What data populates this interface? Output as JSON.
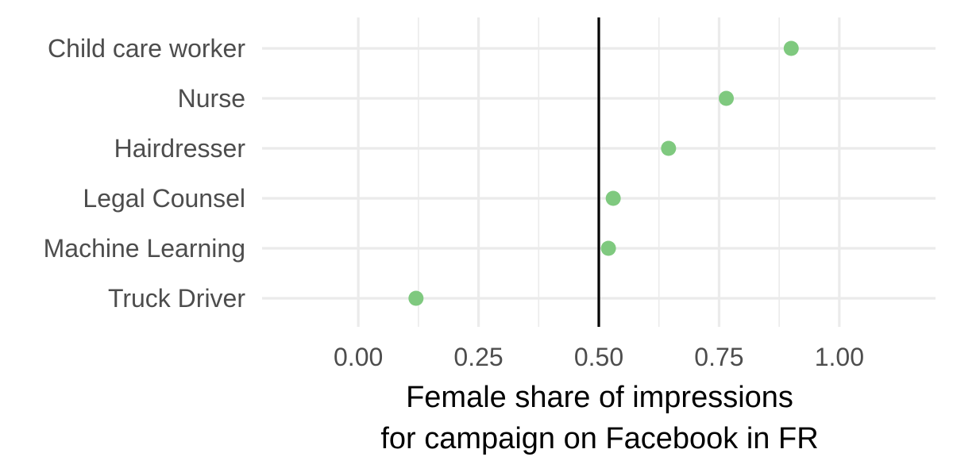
{
  "chart_data": {
    "type": "scatter",
    "title": "",
    "xlabel_lines": [
      "Female share of impressions",
      "for campaign on Facebook in FR"
    ],
    "ylabel": "",
    "xlim": [
      -0.2,
      1.2
    ],
    "xticks": [
      0.0,
      0.25,
      0.5,
      0.75,
      1.0
    ],
    "xtick_labels": [
      "0.00",
      "0.25",
      "0.50",
      "0.75",
      "1.00"
    ],
    "minor_xticks": [
      0.125,
      0.375,
      0.625,
      0.875
    ],
    "categories": [
      "Child care worker",
      "Nurse",
      "Hairdresser",
      "Legal Counsel",
      "Machine Learning",
      "Truck Driver"
    ],
    "values": [
      0.9,
      0.765,
      0.645,
      0.53,
      0.52,
      0.12
    ],
    "reference_line_x": 0.5,
    "grid": true,
    "legend": "none",
    "colors": {
      "point": "#7fc97f",
      "grid": "#ebebeb",
      "reference_line": "#000000",
      "tick_text": "#4d4d4d",
      "axis_title": "#000000"
    }
  }
}
